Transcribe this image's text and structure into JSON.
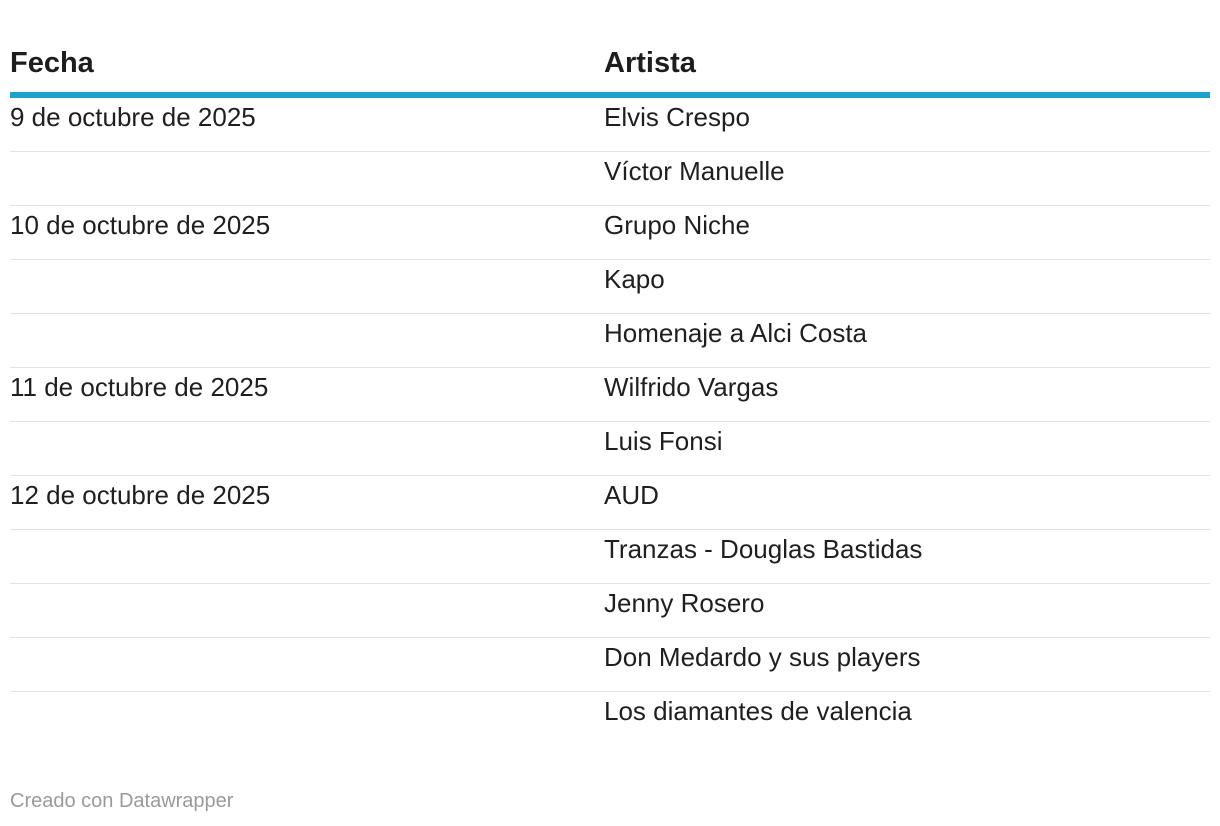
{
  "table": {
    "columns": [
      "Fecha",
      "Artista"
    ],
    "rows": [
      {
        "fecha": "9 de octubre de 2025",
        "artista": "Elvis Crespo"
      },
      {
        "fecha": "",
        "artista": "Víctor Manuelle"
      },
      {
        "fecha": "10 de octubre de 2025",
        "artista": "Grupo Niche"
      },
      {
        "fecha": "",
        "artista": "Kapo"
      },
      {
        "fecha": "",
        "artista": "Homenaje a Alci Costa"
      },
      {
        "fecha": "11 de octubre de 2025",
        "artista": "Wilfrido Vargas"
      },
      {
        "fecha": "",
        "artista": "Luis Fonsi"
      },
      {
        "fecha": "12 de octubre de 2025",
        "artista": "AUD"
      },
      {
        "fecha": "",
        "artista": "Tranzas - Douglas Bastidas"
      },
      {
        "fecha": "",
        "artista": "Jenny Rosero"
      },
      {
        "fecha": "",
        "artista": "Don Medardo y sus players"
      },
      {
        "fecha": "",
        "artista": "Los diamantes de valencia"
      }
    ]
  },
  "footer": {
    "credit": "Creado con Datawrapper"
  },
  "colors": {
    "header_rule": "#1ea1c8",
    "row_divider": "#e2e2e2",
    "footer_text": "#9a9a9a"
  }
}
